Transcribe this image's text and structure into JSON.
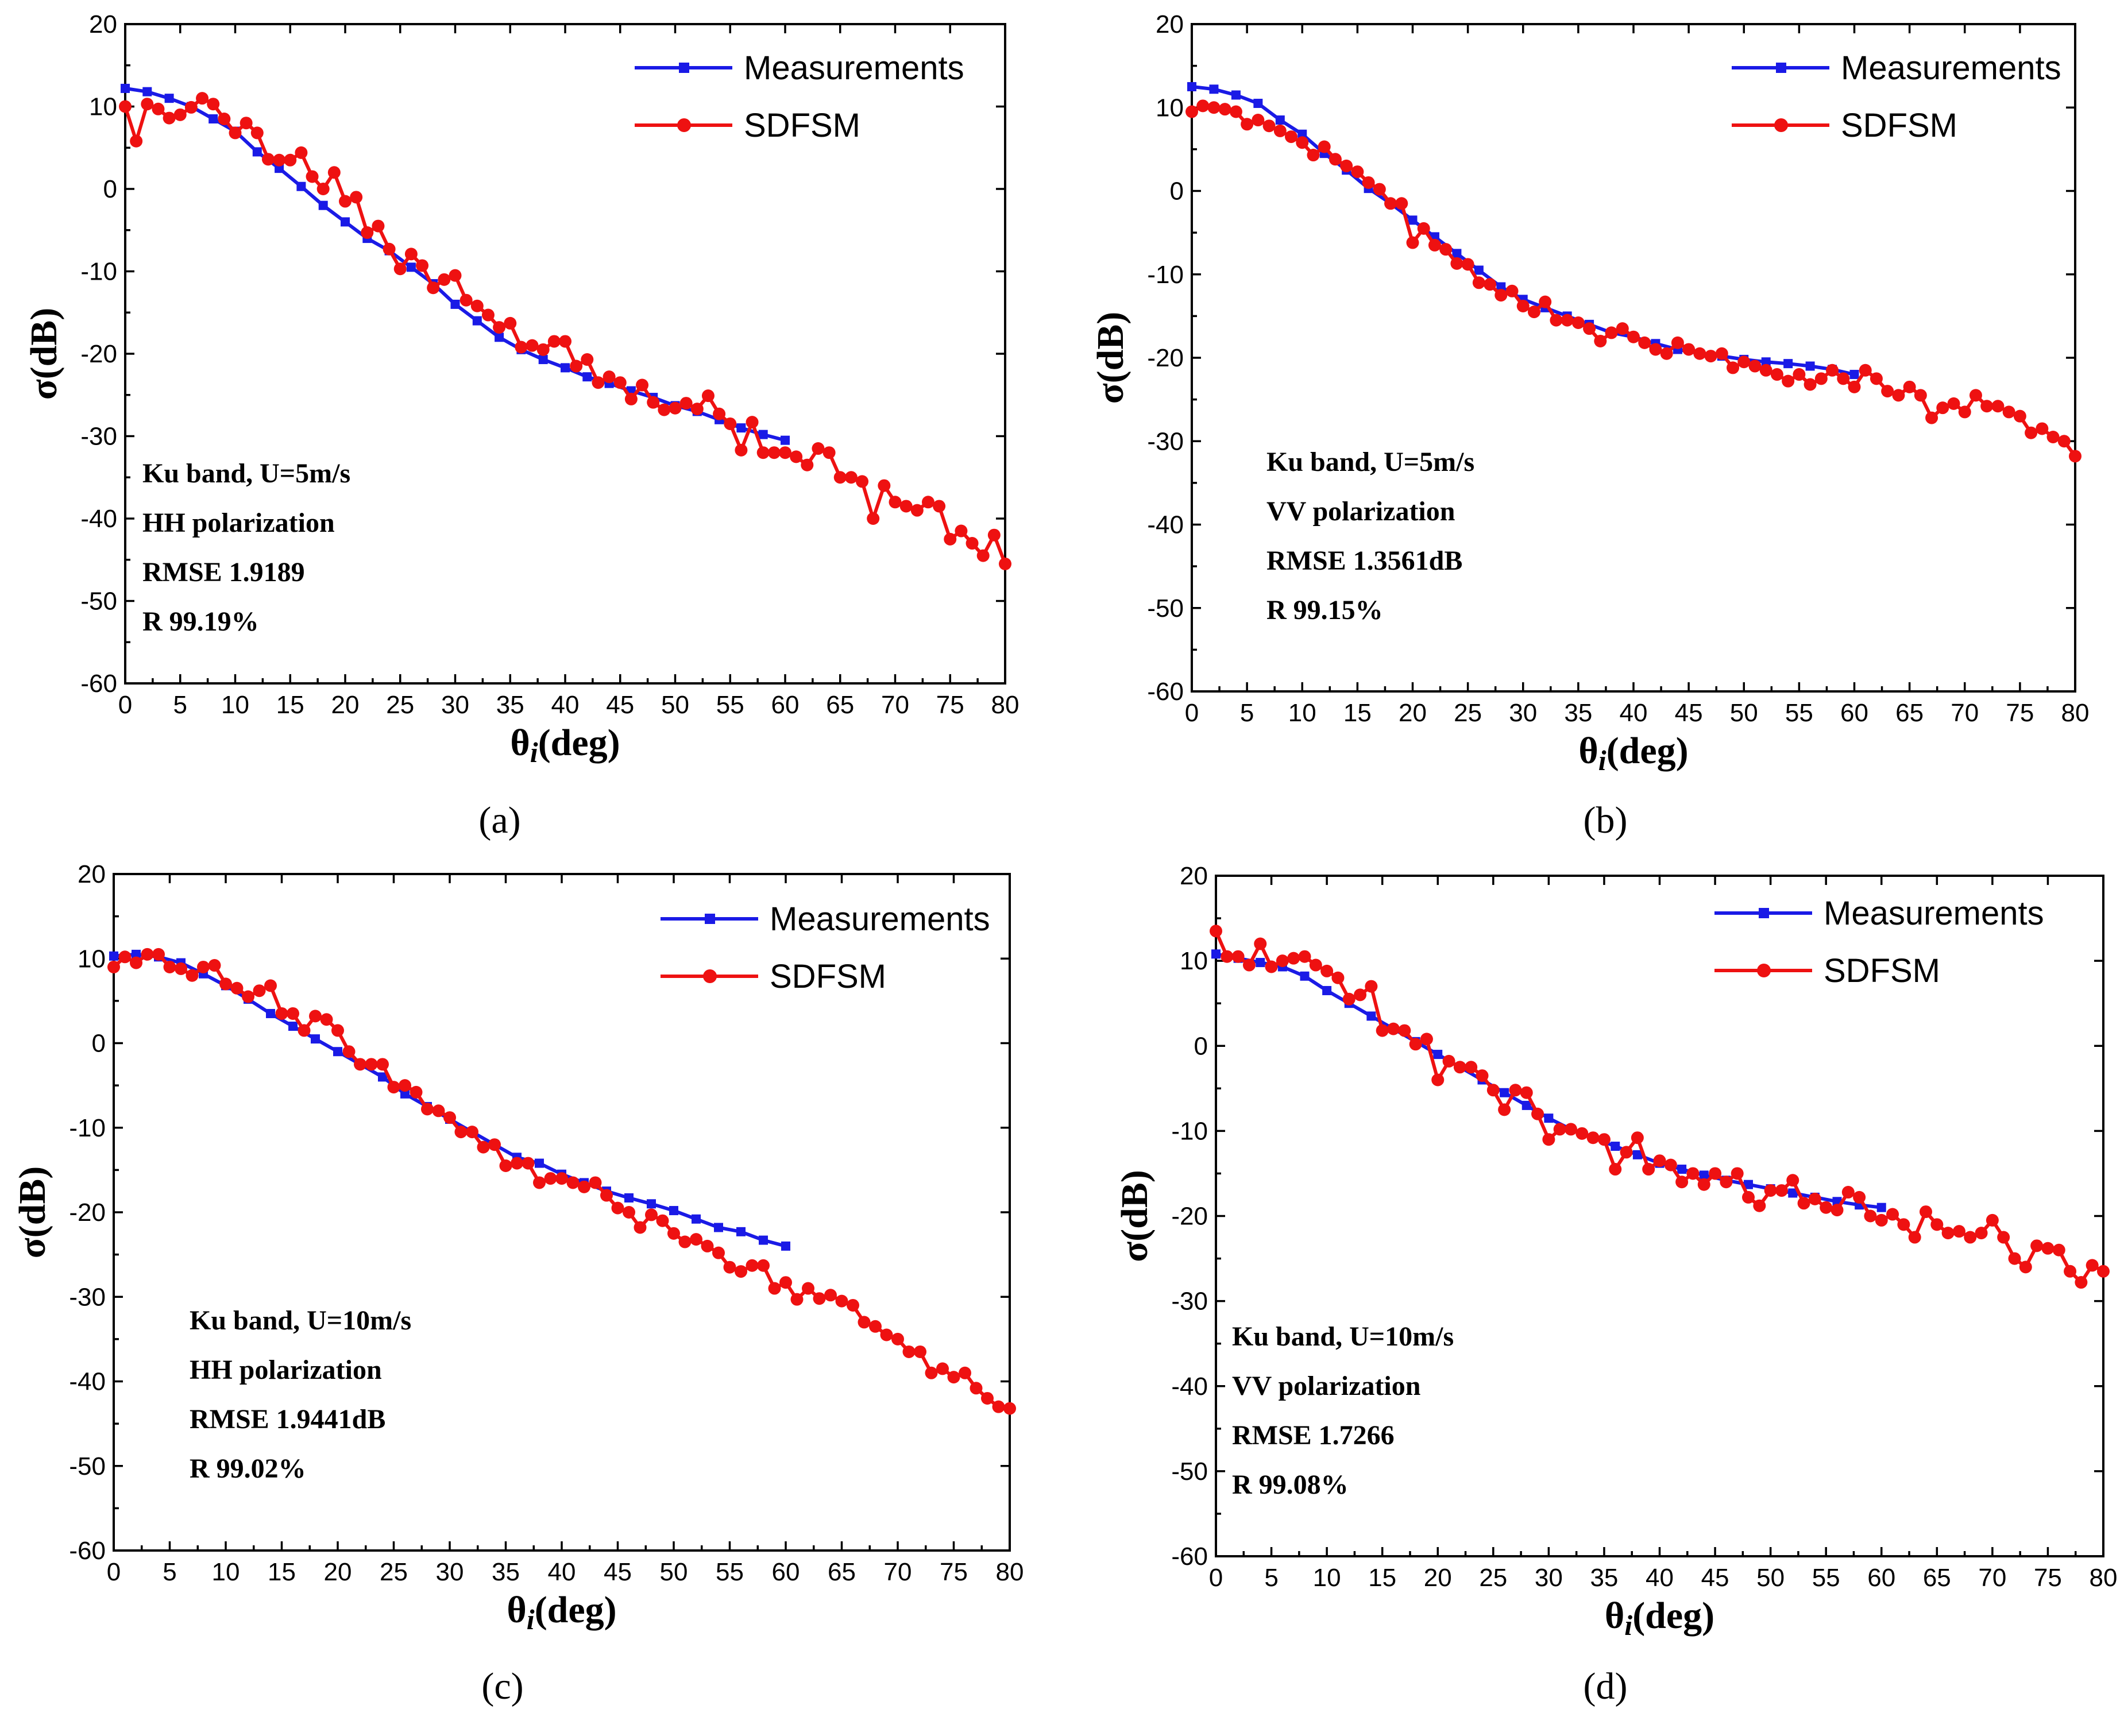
{
  "colors": {
    "measurements": "#1a1ae6",
    "sdfsm": "#ee1111",
    "axis": "#000000"
  },
  "chart_data": [
    {
      "type": "line",
      "panel_label": "(a)",
      "xlabel": "θi(deg)",
      "ylabel": "σ(dB)",
      "xlim": [
        0,
        80
      ],
      "ylim": [
        -60,
        20
      ],
      "xticks": [
        "0",
        "5",
        "10",
        "15",
        "20",
        "25",
        "30",
        "35",
        "40",
        "45",
        "50",
        "55",
        "60",
        "65",
        "70",
        "75",
        "80"
      ],
      "yticks": [
        "20",
        "10",
        "0",
        "-10",
        "-20",
        "-30",
        "-40",
        "-50",
        "-60"
      ],
      "grid": false,
      "legend_position": "top-right",
      "annotations": [
        "Ku band, U=5m/s",
        "HH polarization",
        "RMSE 1.9189",
        "R 99.19%"
      ],
      "series": [
        {
          "name": "Measurements",
          "marker": "square",
          "x": [
            0,
            2,
            4,
            6,
            8,
            10,
            12,
            14,
            16,
            18,
            20,
            22,
            24,
            26,
            28,
            30,
            32,
            34,
            36,
            38,
            40,
            42,
            44,
            46,
            48,
            50,
            52,
            54,
            56,
            58,
            60
          ],
          "y": [
            12.2,
            11.8,
            11.0,
            10.0,
            8.5,
            7.0,
            4.5,
            2.5,
            0.3,
            -2.0,
            -4.0,
            -6.0,
            -7.5,
            -9.5,
            -11.5,
            -14.0,
            -16.0,
            -18.0,
            -19.5,
            -20.7,
            -21.7,
            -22.8,
            -23.6,
            -24.5,
            -25.3,
            -26.3,
            -27.0,
            -28.0,
            -29.0,
            -29.8,
            -30.5
          ]
        },
        {
          "name": "SDFSM",
          "marker": "circle",
          "x": [
            0,
            1,
            2,
            3,
            4,
            5,
            6,
            7,
            8,
            9,
            10,
            11,
            12,
            13,
            14,
            15,
            16,
            17,
            18,
            19,
            20,
            21,
            22,
            23,
            24,
            25,
            26,
            27,
            28,
            29,
            30,
            31,
            32,
            33,
            34,
            35,
            36,
            37,
            38,
            39,
            40,
            41,
            42,
            43,
            44,
            45,
            46,
            47,
            48,
            49,
            50,
            51,
            52,
            53,
            54,
            55,
            56,
            57,
            58,
            59,
            60,
            61,
            62,
            63,
            64,
            65,
            66,
            67,
            68,
            69,
            70,
            71,
            72,
            73,
            74,
            75,
            76,
            77,
            78,
            79,
            80
          ],
          "y": [
            10.0,
            5.8,
            10.3,
            9.7,
            8.6,
            9.0,
            9.9,
            11.0,
            10.3,
            8.5,
            6.8,
            8.0,
            6.8,
            3.6,
            3.5,
            3.5,
            4.4,
            1.5,
            0.0,
            2.0,
            -1.5,
            -1.0,
            -5.3,
            -4.5,
            -7.3,
            -9.7,
            -7.9,
            -9.3,
            -12.0,
            -11.0,
            -10.5,
            -13.5,
            -14.2,
            -15.3,
            -16.8,
            -16.3,
            -19.2,
            -19.0,
            -19.5,
            -18.5,
            -18.5,
            -21.5,
            -20.7,
            -23.5,
            -22.8,
            -23.5,
            -25.5,
            -23.8,
            -25.9,
            -26.8,
            -26.6,
            -26.0,
            -26.7,
            -25.1,
            -27.3,
            -28.5,
            -31.7,
            -28.3,
            -32.0,
            -32.0,
            -32.0,
            -32.5,
            -33.5,
            -31.5,
            -32.0,
            -35.0,
            -35.0,
            -35.5,
            -40.0,
            -36.0,
            -38.0,
            -38.5,
            -39.0,
            -38.0,
            -38.5,
            -42.5,
            -41.5,
            -43.0,
            -44.5,
            -42.0,
            -45.5
          ]
        }
      ]
    },
    {
      "type": "line",
      "panel_label": "(b)",
      "xlabel": "θi(deg)",
      "ylabel": "σ(dB)",
      "xlim": [
        0,
        80
      ],
      "ylim": [
        -60,
        20
      ],
      "xticks": [
        "0",
        "5",
        "10",
        "15",
        "20",
        "25",
        "30",
        "35",
        "40",
        "45",
        "50",
        "55",
        "60",
        "65",
        "70",
        "75",
        "80"
      ],
      "yticks": [
        "20",
        "10",
        "0",
        "-10",
        "-20",
        "-30",
        "-40",
        "-50",
        "-60"
      ],
      "grid": false,
      "legend_position": "top-right",
      "annotations": [
        "Ku band, U=5m/s",
        "VV polarization",
        "RMSE 1.3561dB",
        "R 99.15%"
      ],
      "series": [
        {
          "name": "Measurements",
          "marker": "square",
          "x": [
            0,
            2,
            4,
            6,
            8,
            10,
            12,
            14,
            16,
            18,
            20,
            22,
            24,
            26,
            28,
            30,
            32,
            34,
            36,
            38,
            40,
            42,
            44,
            46,
            48,
            50,
            52,
            54,
            56,
            58,
            60
          ],
          "y": [
            12.5,
            12.2,
            11.5,
            10.5,
            8.5,
            6.8,
            4.5,
            2.5,
            0.3,
            -1.5,
            -3.5,
            -5.5,
            -7.5,
            -9.5,
            -11.5,
            -13.0,
            -14.0,
            -15.0,
            -16.0,
            -17.0,
            -17.5,
            -18.3,
            -19.0,
            -19.5,
            -19.8,
            -20.2,
            -20.5,
            -20.7,
            -21.0,
            -21.4,
            -22.0
          ]
        },
        {
          "name": "SDFSM",
          "marker": "circle",
          "x": [
            0,
            1,
            2,
            3,
            4,
            5,
            6,
            7,
            8,
            9,
            10,
            11,
            12,
            13,
            14,
            15,
            16,
            17,
            18,
            19,
            20,
            21,
            22,
            23,
            24,
            25,
            26,
            27,
            28,
            29,
            30,
            31,
            32,
            33,
            34,
            35,
            36,
            37,
            38,
            39,
            40,
            41,
            42,
            43,
            44,
            45,
            46,
            47,
            48,
            49,
            50,
            51,
            52,
            53,
            54,
            55,
            56,
            57,
            58,
            59,
            60,
            61,
            62,
            63,
            64,
            65,
            66,
            67,
            68,
            69,
            70,
            71,
            72,
            73,
            74,
            75,
            76,
            77,
            78,
            79,
            80
          ],
          "y": [
            9.5,
            10.2,
            10.0,
            9.8,
            9.5,
            8.0,
            8.5,
            7.8,
            7.2,
            6.5,
            5.8,
            4.3,
            5.3,
            3.8,
            3.0,
            2.3,
            1.0,
            0.2,
            -1.5,
            -1.5,
            -6.2,
            -4.5,
            -6.5,
            -7.0,
            -8.7,
            -8.8,
            -11.0,
            -11.2,
            -12.5,
            -12.0,
            -13.8,
            -14.5,
            -13.3,
            -15.5,
            -15.5,
            -15.8,
            -16.5,
            -18.0,
            -17.0,
            -16.5,
            -17.5,
            -18.2,
            -19.0,
            -19.5,
            -18.2,
            -19.0,
            -19.5,
            -19.8,
            -19.5,
            -21.2,
            -20.5,
            -21.0,
            -21.5,
            -22.0,
            -22.8,
            -22.0,
            -23.2,
            -22.5,
            -21.5,
            -22.5,
            -23.5,
            -21.5,
            -22.5,
            -24.0,
            -24.5,
            -23.5,
            -24.5,
            -27.2,
            -26.0,
            -25.5,
            -26.5,
            -24.5,
            -25.8,
            -25.8,
            -26.5,
            -27.0,
            -29.0,
            -28.5,
            -29.5,
            -30.0,
            -31.8
          ]
        }
      ]
    },
    {
      "type": "line",
      "panel_label": "(c)",
      "xlabel": "θi(deg)",
      "ylabel": "σ(dB)",
      "xlim": [
        0,
        80
      ],
      "ylim": [
        -60,
        20
      ],
      "xticks": [
        "0",
        "5",
        "10",
        "15",
        "20",
        "25",
        "30",
        "35",
        "40",
        "45",
        "50",
        "55",
        "60",
        "65",
        "70",
        "75",
        "80"
      ],
      "yticks": [
        "20",
        "10",
        "0",
        "-10",
        "-20",
        "-30",
        "-40",
        "-50",
        "-60"
      ],
      "grid": false,
      "legend_position": "top-right",
      "annotations": [
        "Ku band, U=10m/s",
        "HH polarization",
        "RMSE 1.9441dB",
        "R 99.02%"
      ],
      "series": [
        {
          "name": "Measurements",
          "marker": "square",
          "x": [
            0,
            2,
            4,
            6,
            8,
            10,
            12,
            14,
            16,
            18,
            20,
            22,
            24,
            26,
            28,
            30,
            32,
            34,
            36,
            38,
            40,
            42,
            44,
            46,
            48,
            50,
            52,
            54,
            56,
            58,
            60
          ],
          "y": [
            10.3,
            10.5,
            10.2,
            9.5,
            8.2,
            6.8,
            5.2,
            3.5,
            2.0,
            0.5,
            -1.0,
            -2.5,
            -4.0,
            -6.0,
            -7.5,
            -9.0,
            -10.5,
            -12.0,
            -13.5,
            -14.2,
            -15.5,
            -16.5,
            -17.5,
            -18.3,
            -19.0,
            -19.8,
            -20.8,
            -21.8,
            -22.3,
            -23.3,
            -24.0
          ]
        },
        {
          "name": "SDFSM",
          "marker": "circle",
          "x": [
            0,
            1,
            2,
            3,
            4,
            5,
            6,
            7,
            8,
            9,
            10,
            11,
            12,
            13,
            14,
            15,
            16,
            17,
            18,
            19,
            20,
            21,
            22,
            23,
            24,
            25,
            26,
            27,
            28,
            29,
            30,
            31,
            32,
            33,
            34,
            35,
            36,
            37,
            38,
            39,
            40,
            41,
            42,
            43,
            44,
            45,
            46,
            47,
            48,
            49,
            50,
            51,
            52,
            53,
            54,
            55,
            56,
            57,
            58,
            59,
            60,
            61,
            62,
            63,
            64,
            65,
            66,
            67,
            68,
            69,
            70,
            71,
            72,
            73,
            74,
            75,
            76,
            77,
            78,
            79,
            80
          ],
          "y": [
            9.0,
            10.2,
            9.5,
            10.5,
            10.5,
            9.0,
            8.8,
            8.0,
            9.0,
            9.2,
            7.0,
            6.5,
            5.5,
            6.2,
            6.8,
            3.5,
            3.5,
            1.5,
            3.2,
            2.8,
            1.5,
            -1.0,
            -2.5,
            -2.5,
            -2.5,
            -5.2,
            -5.0,
            -5.8,
            -7.8,
            -8.0,
            -8.8,
            -10.5,
            -10.5,
            -12.3,
            -12.0,
            -14.5,
            -14.2,
            -14.2,
            -16.5,
            -16.0,
            -16.0,
            -16.5,
            -17.0,
            -16.5,
            -18.0,
            -19.5,
            -20.0,
            -21.8,
            -20.3,
            -21.0,
            -22.5,
            -23.5,
            -23.2,
            -24.0,
            -24.8,
            -26.5,
            -27.0,
            -26.3,
            -26.3,
            -29.0,
            -28.3,
            -30.3,
            -29.0,
            -30.2,
            -29.8,
            -30.5,
            -31.0,
            -33.0,
            -33.5,
            -34.5,
            -35.0,
            -36.5,
            -36.5,
            -39.0,
            -38.5,
            -39.5,
            -39.0,
            -40.8,
            -42.0,
            -43.0,
            -43.2
          ]
        }
      ]
    },
    {
      "type": "line",
      "panel_label": "(d)",
      "xlabel": "θi(deg)",
      "ylabel": "σ(dB)",
      "xlim": [
        0,
        80
      ],
      "ylim": [
        -60,
        20
      ],
      "xticks": [
        "0",
        "5",
        "10",
        "15",
        "20",
        "25",
        "30",
        "35",
        "40",
        "45",
        "50",
        "55",
        "60",
        "65",
        "70",
        "75",
        "80"
      ],
      "yticks": [
        "20",
        "10",
        "0",
        "-10",
        "-20",
        "-30",
        "-40",
        "-50",
        "-60"
      ],
      "grid": false,
      "legend_position": "top-right",
      "annotations": [
        "Ku band, U=10m/s",
        "VV polarization",
        "RMSE 1.7266",
        "R 99.08%"
      ],
      "series": [
        {
          "name": "Measurements",
          "marker": "square",
          "x": [
            0,
            2,
            4,
            6,
            8,
            10,
            12,
            14,
            16,
            18,
            20,
            22,
            24,
            26,
            28,
            30,
            32,
            34,
            36,
            38,
            40,
            42,
            44,
            46,
            48,
            50,
            52,
            54,
            56,
            58,
            60
          ],
          "y": [
            10.8,
            10.3,
            9.8,
            9.3,
            8.2,
            6.5,
            5.0,
            3.5,
            2.0,
            0.5,
            -1.0,
            -2.5,
            -4.0,
            -5.5,
            -7.0,
            -8.5,
            -9.8,
            -10.8,
            -11.8,
            -12.8,
            -13.8,
            -14.5,
            -15.2,
            -15.8,
            -16.3,
            -16.8,
            -17.3,
            -17.8,
            -18.3,
            -18.7,
            -19.0
          ]
        },
        {
          "name": "SDFSM",
          "marker": "circle",
          "x": [
            0,
            1,
            2,
            3,
            4,
            5,
            6,
            7,
            8,
            9,
            10,
            11,
            12,
            13,
            14,
            15,
            16,
            17,
            18,
            19,
            20,
            21,
            22,
            23,
            24,
            25,
            26,
            27,
            28,
            29,
            30,
            31,
            32,
            33,
            34,
            35,
            36,
            37,
            38,
            39,
            40,
            41,
            42,
            43,
            44,
            45,
            46,
            47,
            48,
            49,
            50,
            51,
            52,
            53,
            54,
            55,
            56,
            57,
            58,
            59,
            60,
            61,
            62,
            63,
            64,
            65,
            66,
            67,
            68,
            69,
            70,
            71,
            72,
            73,
            74,
            75,
            76,
            77,
            78,
            79,
            80
          ],
          "y": [
            13.5,
            10.5,
            10.5,
            9.5,
            12.0,
            9.3,
            10.0,
            10.3,
            10.5,
            9.5,
            8.8,
            8.0,
            5.5,
            6.0,
            7.0,
            1.8,
            2.0,
            1.8,
            0.2,
            0.8,
            -4.0,
            -1.8,
            -2.5,
            -2.5,
            -3.5,
            -5.2,
            -7.5,
            -5.2,
            -5.5,
            -8.0,
            -11.0,
            -9.8,
            -9.8,
            -10.3,
            -10.8,
            -11.0,
            -14.5,
            -12.5,
            -10.8,
            -14.5,
            -13.5,
            -14.0,
            -16.0,
            -15.0,
            -16.3,
            -15.0,
            -16.0,
            -15.0,
            -17.8,
            -18.8,
            -17.0,
            -17.0,
            -15.8,
            -18.5,
            -18.0,
            -19.0,
            -19.3,
            -17.2,
            -17.8,
            -20.0,
            -20.5,
            -19.8,
            -21.0,
            -22.5,
            -19.5,
            -21.0,
            -22.0,
            -21.8,
            -22.5,
            -22.0,
            -20.5,
            -22.5,
            -25.0,
            -26.0,
            -23.5,
            -23.8,
            -24.0,
            -26.5,
            -27.8,
            -25.8,
            -26.5
          ]
        }
      ]
    }
  ]
}
